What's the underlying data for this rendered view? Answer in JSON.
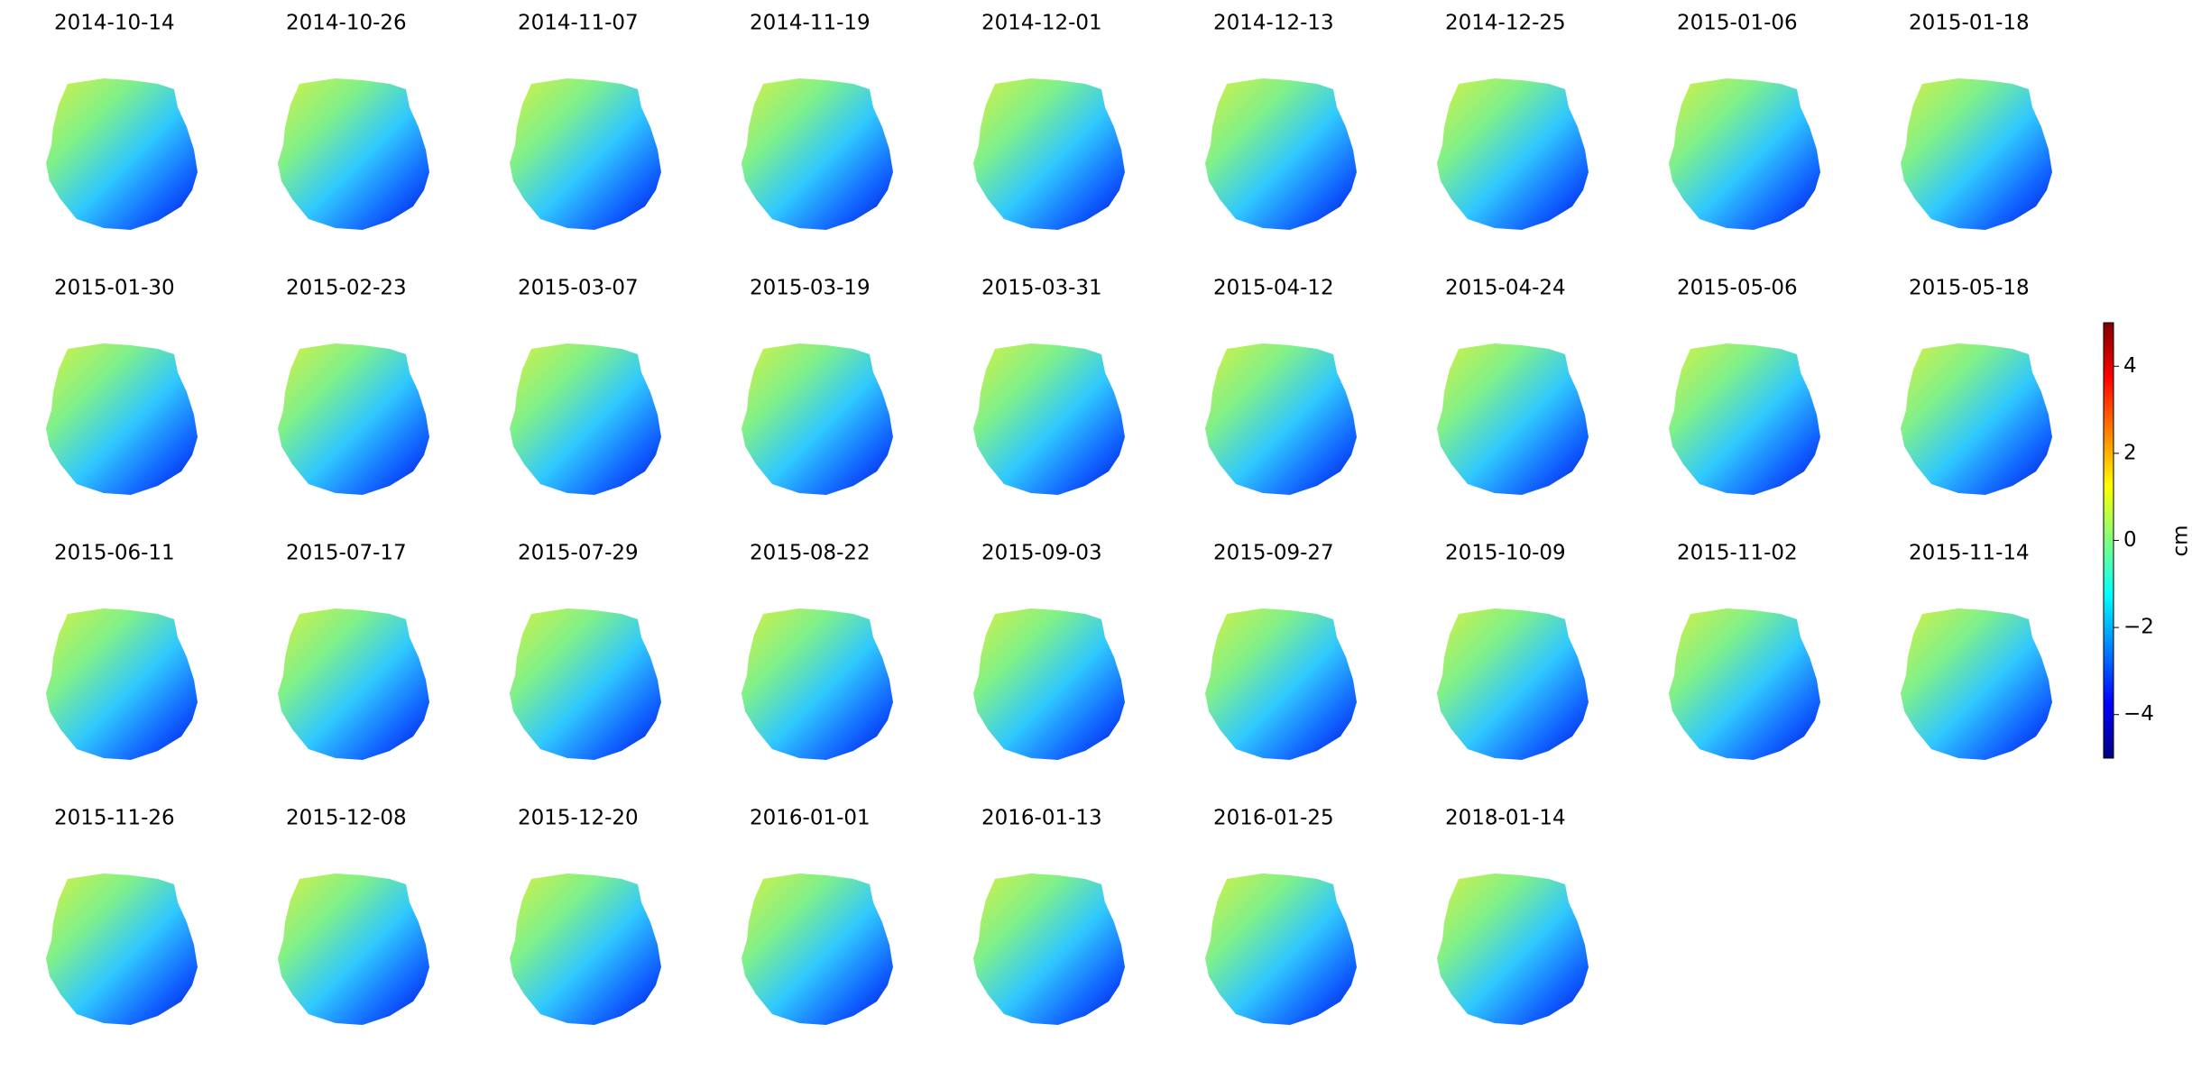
{
  "panels": {
    "titles": [
      "2014-10-14",
      "2014-10-26",
      "2014-11-07",
      "2014-11-19",
      "2014-12-01",
      "2014-12-13",
      "2014-12-25",
      "2015-01-06",
      "2015-01-18",
      "2015-01-30",
      "2015-02-23",
      "2015-03-07",
      "2015-03-19",
      "2015-03-31",
      "2015-04-12",
      "2015-04-24",
      "2015-05-06",
      "2015-05-18",
      "2015-06-11",
      "2015-07-17",
      "2015-07-29",
      "2015-08-22",
      "2015-09-03",
      "2015-09-27",
      "2015-10-09",
      "2015-11-02",
      "2015-11-14",
      "2015-11-26",
      "2015-12-08",
      "2015-12-20",
      "2016-01-01",
      "2016-01-13",
      "2016-01-25",
      "2018-01-14"
    ]
  },
  "colorbar": {
    "label": "cm",
    "lim": [
      -5,
      5
    ],
    "ticks": [
      {
        "value": -4,
        "label": "−4"
      },
      {
        "value": -2,
        "label": "−2"
      },
      0,
      2,
      4
    ]
  }
}
